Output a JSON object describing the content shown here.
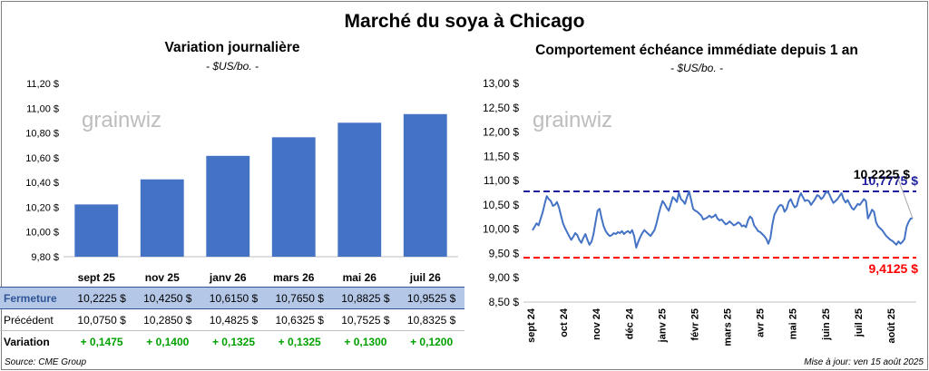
{
  "title": "Marché du soya à Chicago",
  "source": "Source: CME Group",
  "updated": "Mise à jour: ven 15 août 2025",
  "watermark": "grainwiz",
  "colors": {
    "bar": "#4472c4",
    "line": "#4472c4",
    "upper": "#1f1f9f",
    "lower": "#ff0000",
    "positive": "#00a000"
  },
  "chart_data": [
    {
      "type": "bar",
      "title": "Variation journalière",
      "unit_label": "- $US/bo. -",
      "categories": [
        "sept 25",
        "nov 25",
        "janv 26",
        "mars 26",
        "mai 26",
        "juil 26"
      ],
      "values": [
        10.2225,
        10.425,
        10.615,
        10.765,
        10.8825,
        10.9525
      ],
      "ylim": [
        9.8,
        11.2
      ],
      "yticks": [
        "9,80 $",
        "10,00 $",
        "10,20 $",
        "10,40 $",
        "10,60 $",
        "10,80 $",
        "11,00 $",
        "11,20 $"
      ],
      "grid": false
    },
    {
      "type": "line",
      "title": "Comportement échéance immédiate depuis 1 an",
      "unit_label": "- $US/bo. -",
      "ylim": [
        8.5,
        13.0
      ],
      "yticks": [
        "8,50 $",
        "9,00 $",
        "9,50 $",
        "10,00 $",
        "10,50 $",
        "11,00 $",
        "11,50 $",
        "12,00 $",
        "12,50 $",
        "13,00 $"
      ],
      "xticks": [
        "sept 24",
        "oct 24",
        "nov 24",
        "déc 24",
        "janv 25",
        "févr 25",
        "mars 25",
        "avr 25",
        "mai 25",
        "juin 25",
        "juil 25",
        "août 25"
      ],
      "series": [
        {
          "values": [
            9.98,
            10.05,
            10.12,
            10.08,
            10.22,
            10.35,
            10.52,
            10.68,
            10.62,
            10.58,
            10.48,
            10.5,
            10.56,
            10.45,
            10.28,
            10.12,
            10.02,
            9.94,
            9.86,
            9.78,
            9.84,
            9.92,
            9.88,
            9.78,
            9.72,
            9.82,
            9.9,
            9.78,
            9.68,
            9.74,
            9.9,
            10.15,
            10.38,
            10.42,
            10.22,
            10.06,
            9.96,
            9.9,
            9.86,
            9.88,
            9.92,
            9.9,
            9.94,
            9.92,
            9.96,
            9.9,
            9.94,
            9.96,
            9.92,
            9.98,
            9.86,
            9.62,
            9.74,
            9.84,
            9.92,
            9.98,
            9.94,
            9.9,
            9.86,
            9.92,
            9.98,
            10.12,
            10.3,
            10.46,
            10.58,
            10.52,
            10.44,
            10.38,
            10.52,
            10.66,
            10.62,
            10.56,
            10.75,
            10.62,
            10.58,
            10.52,
            10.66,
            10.78,
            10.6,
            10.42,
            10.38,
            10.36,
            10.32,
            10.28,
            10.2,
            10.22,
            10.24,
            10.28,
            10.24,
            10.26,
            10.3,
            10.22,
            10.18,
            10.2,
            10.15,
            10.1,
            10.12,
            10.16,
            10.12,
            10.08,
            10.1,
            10.14,
            10.12,
            10.06,
            10.08,
            10.04,
            10.18,
            10.26,
            10.22,
            10.08,
            10.02,
            9.96,
            9.94,
            9.9,
            9.86,
            9.8,
            9.7,
            9.82,
            10.1,
            10.3,
            10.38,
            10.46,
            10.5,
            10.48,
            10.36,
            10.42,
            10.56,
            10.62,
            10.52,
            10.45,
            10.48,
            10.64,
            10.74,
            10.66,
            10.58,
            10.6,
            10.58,
            10.5,
            10.56,
            10.62,
            10.7,
            10.68,
            10.62,
            10.66,
            10.74,
            10.78,
            10.72,
            10.62,
            10.54,
            10.58,
            10.62,
            10.68,
            10.74,
            10.62,
            10.55,
            10.6,
            10.52,
            10.44,
            10.4,
            10.46,
            10.52,
            10.5,
            10.56,
            10.62,
            10.58,
            10.22,
            10.3,
            10.4,
            10.36,
            10.14,
            10.06,
            10.02,
            9.98,
            9.92,
            9.86,
            9.82,
            9.78,
            9.76,
            9.72,
            9.68,
            9.75,
            9.7,
            9.74,
            9.8,
            10.05,
            10.15,
            10.22,
            10.2225
          ]
        }
      ],
      "reference_lines": [
        {
          "value": 10.7775,
          "label": "10,7775 $",
          "color": "#1f1f9f"
        },
        {
          "value": 9.4125,
          "label": "9,4125 $",
          "color": "#ff0000"
        }
      ],
      "last_value_label": "10,2225 $",
      "grid": false
    }
  ],
  "table": {
    "rows": [
      {
        "label": "Fermeture",
        "values": [
          "10,2225",
          "10,4250",
          "10,6150",
          "10,7650",
          "10,8825",
          "10,9525"
        ],
        "suffix": "$"
      },
      {
        "label": "Précédent",
        "values": [
          "10,0750",
          "10,2850",
          "10,4825",
          "10,6325",
          "10,7525",
          "10,8325"
        ],
        "suffix": "$"
      },
      {
        "label": "Variation",
        "values": [
          "+ 0,1475",
          "+ 0,1400",
          "+ 0,1325",
          "+ 0,1325",
          "+ 0,1300",
          "+ 0,1200"
        ],
        "suffix": ""
      }
    ]
  }
}
